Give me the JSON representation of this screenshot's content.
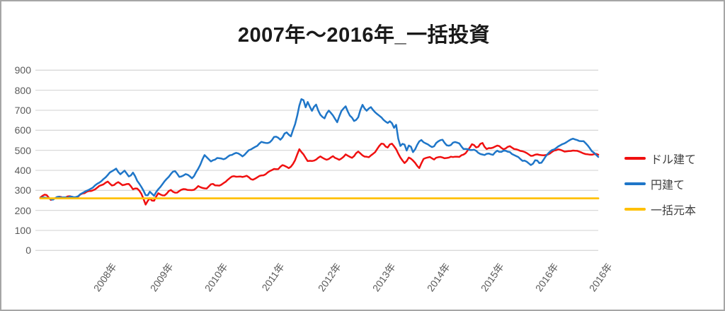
{
  "chart_data": {
    "type": "line",
    "title": "2007年～2016年_一括投資",
    "grid": true,
    "legend_position": "right",
    "y_axis": {
      "min": 0,
      "max": 900,
      "step": 100,
      "tick_labels": [
        "0",
        "100",
        "200",
        "300",
        "400",
        "500",
        "600",
        "700",
        "800",
        "900"
      ]
    },
    "x_ticks": [
      {
        "label": "2008年",
        "t": 0.112
      },
      {
        "label": "2009年",
        "t": 0.213
      },
      {
        "label": "2010年",
        "t": 0.311
      },
      {
        "label": "2011年",
        "t": 0.412
      },
      {
        "label": "2012年",
        "t": 0.514
      },
      {
        "label": "2013年",
        "t": 0.612
      },
      {
        "label": "2014年",
        "t": 0.709
      },
      {
        "label": "2015年",
        "t": 0.806
      },
      {
        "label": "2016年",
        "t": 0.903
      },
      {
        "label": "2016年",
        "t": 1.0
      }
    ],
    "series": [
      {
        "name": "ドル建て",
        "color": "#f01010",
        "keypoints": [
          [
            0,
            262
          ],
          [
            0.009,
            278
          ],
          [
            0.019,
            255
          ],
          [
            0.029,
            268
          ],
          [
            0.042,
            262
          ],
          [
            0.055,
            272
          ],
          [
            0.065,
            265
          ],
          [
            0.076,
            285
          ],
          [
            0.089,
            298
          ],
          [
            0.099,
            310
          ],
          [
            0.109,
            322
          ],
          [
            0.121,
            342
          ],
          [
            0.129,
            318
          ],
          [
            0.138,
            345
          ],
          [
            0.147,
            328
          ],
          [
            0.157,
            340
          ],
          [
            0.166,
            302
          ],
          [
            0.175,
            312
          ],
          [
            0.183,
            268
          ],
          [
            0.189,
            232
          ],
          [
            0.195,
            262
          ],
          [
            0.202,
            240
          ],
          [
            0.211,
            288
          ],
          [
            0.221,
            268
          ],
          [
            0.232,
            302
          ],
          [
            0.245,
            288
          ],
          [
            0.258,
            308
          ],
          [
            0.27,
            298
          ],
          [
            0.283,
            322
          ],
          [
            0.296,
            308
          ],
          [
            0.308,
            330
          ],
          [
            0.321,
            322
          ],
          [
            0.334,
            352
          ],
          [
            0.345,
            378
          ],
          [
            0.357,
            362
          ],
          [
            0.368,
            372
          ],
          [
            0.379,
            352
          ],
          [
            0.391,
            368
          ],
          [
            0.402,
            378
          ],
          [
            0.414,
            398
          ],
          [
            0.425,
            408
          ],
          [
            0.435,
            425
          ],
          [
            0.445,
            412
          ],
          [
            0.456,
            440
          ],
          [
            0.464,
            505
          ],
          [
            0.472,
            478
          ],
          [
            0.48,
            440
          ],
          [
            0.49,
            452
          ],
          [
            0.501,
            468
          ],
          [
            0.513,
            448
          ],
          [
            0.524,
            472
          ],
          [
            0.536,
            455
          ],
          [
            0.547,
            478
          ],
          [
            0.558,
            462
          ],
          [
            0.57,
            492
          ],
          [
            0.58,
            472
          ],
          [
            0.59,
            462
          ],
          [
            0.602,
            500
          ],
          [
            0.613,
            532
          ],
          [
            0.622,
            515
          ],
          [
            0.629,
            542
          ],
          [
            0.638,
            508
          ],
          [
            0.646,
            462
          ],
          [
            0.654,
            432
          ],
          [
            0.661,
            462
          ],
          [
            0.67,
            440
          ],
          [
            0.679,
            412
          ],
          [
            0.688,
            462
          ],
          [
            0.697,
            472
          ],
          [
            0.706,
            455
          ],
          [
            0.716,
            468
          ],
          [
            0.726,
            462
          ],
          [
            0.736,
            470
          ],
          [
            0.747,
            468
          ],
          [
            0.758,
            478
          ],
          [
            0.768,
            502
          ],
          [
            0.775,
            535
          ],
          [
            0.783,
            508
          ],
          [
            0.791,
            538
          ],
          [
            0.799,
            505
          ],
          [
            0.808,
            515
          ],
          [
            0.818,
            528
          ],
          [
            0.829,
            508
          ],
          [
            0.839,
            520
          ],
          [
            0.849,
            512
          ],
          [
            0.859,
            495
          ],
          [
            0.869,
            490
          ],
          [
            0.879,
            472
          ],
          [
            0.89,
            480
          ],
          [
            0.9,
            472
          ],
          [
            0.91,
            482
          ],
          [
            0.92,
            498
          ],
          [
            0.93,
            505
          ],
          [
            0.94,
            492
          ],
          [
            0.95,
            498
          ],
          [
            0.961,
            502
          ],
          [
            0.971,
            485
          ],
          [
            0.981,
            478
          ],
          [
            0.991,
            482
          ],
          [
            1,
            478
          ]
        ]
      },
      {
        "name": "円建て",
        "color": "#1f76c8",
        "keypoints": [
          [
            0,
            258
          ],
          [
            0.01,
            268
          ],
          [
            0.02,
            252
          ],
          [
            0.032,
            265
          ],
          [
            0.044,
            262
          ],
          [
            0.057,
            268
          ],
          [
            0.07,
            275
          ],
          [
            0.082,
            295
          ],
          [
            0.095,
            315
          ],
          [
            0.108,
            342
          ],
          [
            0.118,
            372
          ],
          [
            0.128,
            398
          ],
          [
            0.136,
            412
          ],
          [
            0.143,
            378
          ],
          [
            0.151,
            402
          ],
          [
            0.159,
            368
          ],
          [
            0.166,
            388
          ],
          [
            0.175,
            345
          ],
          [
            0.183,
            308
          ],
          [
            0.19,
            268
          ],
          [
            0.197,
            302
          ],
          [
            0.203,
            268
          ],
          [
            0.211,
            305
          ],
          [
            0.22,
            335
          ],
          [
            0.23,
            368
          ],
          [
            0.24,
            398
          ],
          [
            0.25,
            365
          ],
          [
            0.26,
            382
          ],
          [
            0.272,
            362
          ],
          [
            0.283,
            408
          ],
          [
            0.294,
            478
          ],
          [
            0.306,
            442
          ],
          [
            0.317,
            465
          ],
          [
            0.329,
            452
          ],
          [
            0.34,
            478
          ],
          [
            0.352,
            492
          ],
          [
            0.363,
            472
          ],
          [
            0.374,
            502
          ],
          [
            0.386,
            522
          ],
          [
            0.397,
            545
          ],
          [
            0.409,
            532
          ],
          [
            0.42,
            568
          ],
          [
            0.43,
            552
          ],
          [
            0.44,
            588
          ],
          [
            0.449,
            572
          ],
          [
            0.458,
            645
          ],
          [
            0.464,
            725
          ],
          [
            0.47,
            768
          ],
          [
            0.475,
            712
          ],
          [
            0.48,
            742
          ],
          [
            0.486,
            695
          ],
          [
            0.494,
            728
          ],
          [
            0.501,
            678
          ],
          [
            0.509,
            655
          ],
          [
            0.516,
            698
          ],
          [
            0.524,
            672
          ],
          [
            0.532,
            645
          ],
          [
            0.539,
            695
          ],
          [
            0.547,
            718
          ],
          [
            0.555,
            672
          ],
          [
            0.562,
            645
          ],
          [
            0.57,
            668
          ],
          [
            0.577,
            728
          ],
          [
            0.585,
            698
          ],
          [
            0.593,
            718
          ],
          [
            0.6,
            688
          ],
          [
            0.608,
            672
          ],
          [
            0.616,
            655
          ],
          [
            0.623,
            638
          ],
          [
            0.629,
            655
          ],
          [
            0.633,
            602
          ],
          [
            0.637,
            638
          ],
          [
            0.641,
            558
          ],
          [
            0.646,
            512
          ],
          [
            0.651,
            548
          ],
          [
            0.656,
            492
          ],
          [
            0.662,
            535
          ],
          [
            0.669,
            482
          ],
          [
            0.675,
            528
          ],
          [
            0.681,
            555
          ],
          [
            0.689,
            538
          ],
          [
            0.697,
            522
          ],
          [
            0.704,
            505
          ],
          [
            0.712,
            548
          ],
          [
            0.72,
            552
          ],
          [
            0.727,
            528
          ],
          [
            0.735,
            520
          ],
          [
            0.742,
            545
          ],
          [
            0.75,
            532
          ],
          [
            0.758,
            512
          ],
          [
            0.765,
            505
          ],
          [
            0.773,
            498
          ],
          [
            0.78,
            505
          ],
          [
            0.788,
            482
          ],
          [
            0.796,
            478
          ],
          [
            0.803,
            488
          ],
          [
            0.811,
            482
          ],
          [
            0.818,
            495
          ],
          [
            0.826,
            488
          ],
          [
            0.834,
            498
          ],
          [
            0.841,
            492
          ],
          [
            0.849,
            478
          ],
          [
            0.857,
            468
          ],
          [
            0.864,
            448
          ],
          [
            0.872,
            438
          ],
          [
            0.881,
            428
          ],
          [
            0.888,
            452
          ],
          [
            0.896,
            435
          ],
          [
            0.904,
            462
          ],
          [
            0.912,
            488
          ],
          [
            0.921,
            505
          ],
          [
            0.93,
            522
          ],
          [
            0.939,
            538
          ],
          [
            0.948,
            548
          ],
          [
            0.957,
            558
          ],
          [
            0.966,
            545
          ],
          [
            0.975,
            548
          ],
          [
            0.982,
            522
          ],
          [
            0.99,
            492
          ],
          [
            0.995,
            478
          ],
          [
            1,
            468
          ]
        ]
      },
      {
        "name": "一括元本",
        "color": "#ffc000",
        "keypoints": [
          [
            0,
            260
          ],
          [
            1,
            260
          ]
        ]
      }
    ]
  },
  "colors": {
    "gridline": "#d9d9d9",
    "axis_text": "#595959",
    "legend_text": "#404040",
    "frame_border": "#a6a6a6"
  }
}
